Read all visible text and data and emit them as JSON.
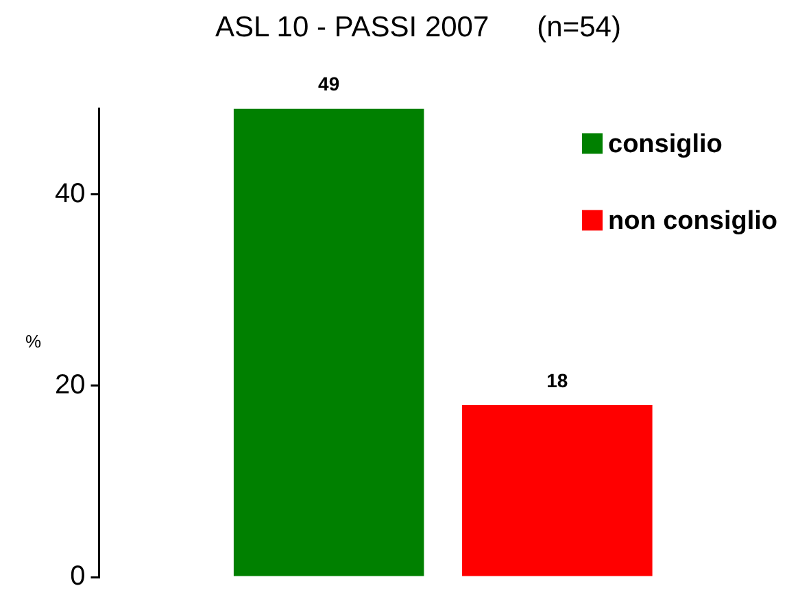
{
  "chart_data": {
    "type": "bar",
    "title": "ASL 10 - PASSI 2007      (n=54)",
    "ylabel": "%",
    "categories": [
      null
    ],
    "series": [
      {
        "name": "consiglio",
        "color": "#008000",
        "values": [
          49
        ]
      },
      {
        "name": "non consiglio",
        "color": "#ff0000",
        "values": [
          18
        ]
      }
    ],
    "ylim": [
      0,
      49
    ],
    "yticks": [
      0,
      20,
      40
    ],
    "grid": false,
    "legend": "top right",
    "tick_labels": "y",
    "data_labels": true
  }
}
